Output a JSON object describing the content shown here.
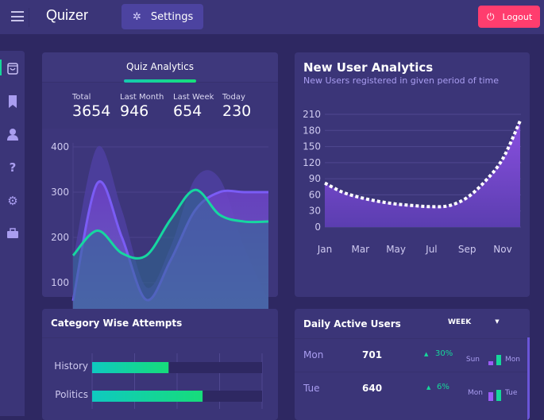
{
  "header": {
    "brand": "Quizer",
    "settings_label": "Settings",
    "logout_label": "Logout"
  },
  "sidebar": {
    "items": [
      {
        "icon": "shopping-bag-icon",
        "active": true
      },
      {
        "icon": "bookmark-icon"
      },
      {
        "icon": "user-icon"
      },
      {
        "icon": "question-icon"
      },
      {
        "icon": "gear-icon"
      },
      {
        "icon": "briefcase-icon"
      }
    ]
  },
  "quiz_analytics": {
    "title": "Quiz Analytics",
    "stats": [
      {
        "label": "Total",
        "value": "3654"
      },
      {
        "label": "Last Month",
        "value": "946"
      },
      {
        "label": "Last Week",
        "value": "654"
      },
      {
        "label": "Today",
        "value": "230"
      }
    ]
  },
  "new_users": {
    "title": "New User Analytics",
    "subtitle": "New Users registered in given period of time"
  },
  "category": {
    "title": "Category Wise Attempts"
  },
  "daily": {
    "title": "Daily Active Users",
    "period": "WEEK",
    "rows": [
      {
        "day": "Mon",
        "value": "701",
        "change": "30%",
        "prev": "Sun",
        "cur": "Mon",
        "prev_level": 0.35,
        "cur_level": 0.9
      },
      {
        "day": "Tue",
        "value": "640",
        "change": "6%",
        "prev": "Mon",
        "cur": "Tue",
        "prev_level": 0.8,
        "cur_level": 1.0
      }
    ]
  },
  "colors": {
    "accent": "#16d79a",
    "purple": "#7a5cf5",
    "logout": "#ff3d6e",
    "card": "#3b3578"
  },
  "chart_data": [
    {
      "type": "area",
      "yticks": [
        "400",
        "300",
        "200",
        "100"
      ],
      "ylim": [
        40,
        400
      ],
      "grid": true,
      "series": [
        {
          "x": [
            0,
            1,
            2,
            3,
            4,
            5,
            6,
            7,
            8
          ],
          "values": [
            150,
            400,
            260,
            90,
            180,
            330,
            330,
            180,
            60
          ],
          "style": "background-area"
        },
        {
          "x": [
            0,
            1,
            2,
            3,
            4,
            5,
            6,
            7,
            8
          ],
          "values": [
            60,
            320,
            200,
            62,
            150,
            260,
            300,
            300,
            300
          ],
          "style": "purple-line"
        },
        {
          "x": [
            0,
            1,
            2,
            3,
            4,
            5,
            6,
            7,
            8
          ],
          "values": [
            160,
            215,
            165,
            160,
            240,
            305,
            250,
            235,
            235
          ],
          "style": "teal-line"
        }
      ]
    },
    {
      "type": "area",
      "xticks": [
        "Jan",
        "Mar",
        "May",
        "Jul",
        "Sep",
        "Nov"
      ],
      "yticks": [
        "210",
        "180",
        "150",
        "120",
        "90",
        "60",
        "30",
        "0"
      ],
      "ylim": [
        0,
        210
      ],
      "grid": true,
      "x": [
        "Jan",
        "Feb",
        "Mar",
        "Apr",
        "May",
        "Jun",
        "Jul",
        "Aug",
        "Sep",
        "Oct",
        "Nov",
        "Dec"
      ],
      "values": [
        82,
        65,
        55,
        48,
        43,
        40,
        38,
        40,
        55,
        85,
        127,
        198
      ]
    },
    {
      "type": "bar",
      "orientation": "horizontal",
      "categories": [
        "History",
        "Politics"
      ],
      "values": [
        45,
        65
      ],
      "xlim": [
        0,
        100
      ]
    }
  ]
}
